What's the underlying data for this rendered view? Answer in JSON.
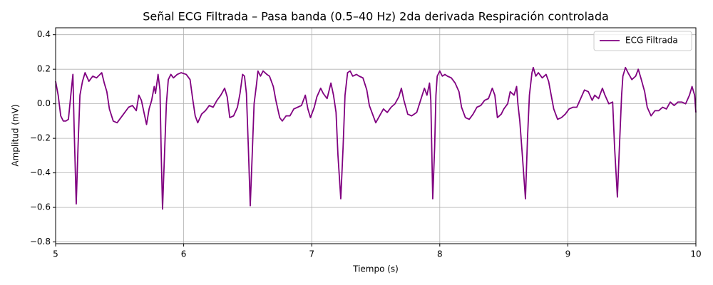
{
  "chart_data": {
    "type": "line",
    "title": "Señal ECG Filtrada – Pasa banda (0.5–40 Hz) 2da derivada Respiración controlada",
    "xlabel": "Tiempo (s)",
    "ylabel": "Amplitud (mV)",
    "xlim": [
      5,
      10
    ],
    "ylim": [
      -0.81,
      0.44
    ],
    "xticks": [
      5,
      6,
      7,
      8,
      9,
      10
    ],
    "yticks": [
      {
        "value": -0.8,
        "label": "−0.8"
      },
      {
        "value": -0.6,
        "label": "−0.6"
      },
      {
        "value": -0.4,
        "label": "−0.4"
      },
      {
        "value": -0.2,
        "label": "−0.2"
      },
      {
        "value": 0,
        "label": "0.0"
      },
      0.2,
      0.4
    ],
    "grid": true,
    "legend": "upper right",
    "x": [
      5.0,
      5.02,
      5.04,
      5.06,
      5.08,
      5.1,
      5.12,
      5.135,
      5.145,
      5.161,
      5.175,
      5.19,
      5.21,
      5.23,
      5.26,
      5.29,
      5.32,
      5.36,
      5.38,
      5.4,
      5.42,
      5.45,
      5.48,
      5.51,
      5.54,
      5.57,
      5.6,
      5.63,
      5.65,
      5.67,
      5.69,
      5.71,
      5.73,
      5.75,
      5.77,
      5.78,
      5.8,
      5.815,
      5.825,
      5.835,
      5.85,
      5.865,
      5.88,
      5.9,
      5.92,
      5.95,
      5.98,
      6.02,
      6.05,
      6.07,
      6.09,
      6.11,
      6.14,
      6.17,
      6.2,
      6.23,
      6.26,
      6.29,
      6.32,
      6.34,
      6.36,
      6.39,
      6.42,
      6.44,
      6.46,
      6.475,
      6.49,
      6.505,
      6.52,
      6.535,
      6.55,
      6.57,
      6.58,
      6.6,
      6.62,
      6.65,
      6.67,
      6.7,
      6.72,
      6.75,
      6.77,
      6.8,
      6.83,
      6.86,
      6.89,
      6.92,
      6.95,
      6.97,
      6.99,
      7.02,
      7.04,
      7.07,
      7.09,
      7.12,
      7.15,
      7.17,
      7.19,
      7.205,
      7.227,
      7.245,
      7.26,
      7.28,
      7.3,
      7.32,
      7.35,
      7.37,
      7.4,
      7.43,
      7.45,
      7.48,
      7.5,
      7.53,
      7.56,
      7.59,
      7.62,
      7.65,
      7.68,
      7.7,
      7.72,
      7.75,
      7.78,
      7.82,
      7.85,
      7.88,
      7.9,
      7.92,
      7.93,
      7.945,
      7.96,
      7.97,
      7.98,
      8.0,
      8.02,
      8.04,
      8.06,
      8.09,
      8.12,
      8.15,
      8.17,
      8.2,
      8.23,
      8.26,
      8.29,
      8.32,
      8.35,
      8.38,
      8.41,
      8.43,
      8.45,
      8.48,
      8.5,
      8.53,
      8.55,
      8.58,
      8.6,
      8.61,
      8.625,
      8.645,
      8.669,
      8.685,
      8.7,
      8.72,
      8.73,
      8.75,
      8.77,
      8.8,
      8.83,
      8.85,
      8.87,
      8.89,
      8.92,
      8.95,
      8.98,
      9.01,
      9.04,
      9.07,
      9.1,
      9.13,
      9.16,
      9.19,
      9.21,
      9.24,
      9.27,
      9.29,
      9.32,
      9.35,
      9.365,
      9.387,
      9.4,
      9.42,
      9.43,
      9.45,
      9.47,
      9.5,
      9.53,
      9.55,
      9.57,
      9.6,
      9.62,
      9.65,
      9.68,
      9.71,
      9.74,
      9.77,
      9.8,
      9.83,
      9.86,
      9.89,
      9.92,
      9.95,
      9.97,
      9.99,
      10.0
    ],
    "series": [
      {
        "name": "ECG Filtrada",
        "color": "#800080",
        "values": [
          0.13,
          0.05,
          -0.07,
          -0.1,
          -0.1,
          -0.09,
          0.06,
          0.17,
          -0.15,
          -0.58,
          -0.25,
          0.05,
          0.13,
          0.18,
          0.13,
          0.16,
          0.15,
          0.18,
          0.12,
          0.07,
          -0.03,
          -0.1,
          -0.11,
          -0.08,
          -0.05,
          -0.02,
          -0.01,
          -0.04,
          0.05,
          0.02,
          -0.05,
          -0.12,
          -0.03,
          0.02,
          0.1,
          0.06,
          0.17,
          0.08,
          -0.3,
          -0.61,
          -0.3,
          0.0,
          0.14,
          0.17,
          0.15,
          0.17,
          0.18,
          0.17,
          0.14,
          0.03,
          -0.07,
          -0.11,
          -0.06,
          -0.04,
          -0.01,
          -0.02,
          0.02,
          0.05,
          0.09,
          0.04,
          -0.08,
          -0.07,
          -0.02,
          0.06,
          0.17,
          0.16,
          0.06,
          -0.25,
          -0.59,
          -0.3,
          0.0,
          0.12,
          0.19,
          0.16,
          0.19,
          0.17,
          0.16,
          0.1,
          0.02,
          -0.08,
          -0.1,
          -0.07,
          -0.07,
          -0.03,
          -0.02,
          -0.01,
          0.05,
          -0.03,
          -0.08,
          -0.02,
          0.04,
          0.09,
          0.06,
          0.03,
          0.12,
          0.05,
          -0.05,
          -0.3,
          -0.55,
          -0.25,
          0.05,
          0.18,
          0.19,
          0.16,
          0.17,
          0.16,
          0.15,
          0.08,
          -0.01,
          -0.07,
          -0.11,
          -0.07,
          -0.03,
          -0.05,
          -0.02,
          0.0,
          0.04,
          0.09,
          0.02,
          -0.06,
          -0.07,
          -0.05,
          0.02,
          0.09,
          0.05,
          0.12,
          0.02,
          -0.55,
          -0.25,
          0.05,
          0.16,
          0.19,
          0.16,
          0.17,
          0.16,
          0.15,
          0.12,
          0.07,
          -0.02,
          -0.08,
          -0.09,
          -0.06,
          -0.02,
          -0.01,
          0.02,
          0.03,
          0.09,
          0.05,
          -0.08,
          -0.06,
          -0.03,
          0.0,
          0.07,
          0.05,
          0.1,
          0.0,
          -0.1,
          -0.3,
          -0.55,
          -0.2,
          0.05,
          0.18,
          0.21,
          0.16,
          0.18,
          0.15,
          0.17,
          0.13,
          0.05,
          -0.03,
          -0.09,
          -0.08,
          -0.06,
          -0.03,
          -0.02,
          -0.02,
          0.03,
          0.08,
          0.07,
          0.02,
          0.05,
          0.03,
          0.09,
          0.05,
          0.0,
          0.01,
          -0.25,
          -0.54,
          -0.3,
          0.05,
          0.16,
          0.21,
          0.18,
          0.14,
          0.16,
          0.2,
          0.15,
          0.07,
          -0.02,
          -0.07,
          -0.04,
          -0.04,
          -0.02,
          -0.03,
          0.01,
          -0.01,
          0.01,
          0.01,
          0.0,
          0.05,
          0.1,
          0.05,
          -0.05
        ]
      }
    ]
  }
}
